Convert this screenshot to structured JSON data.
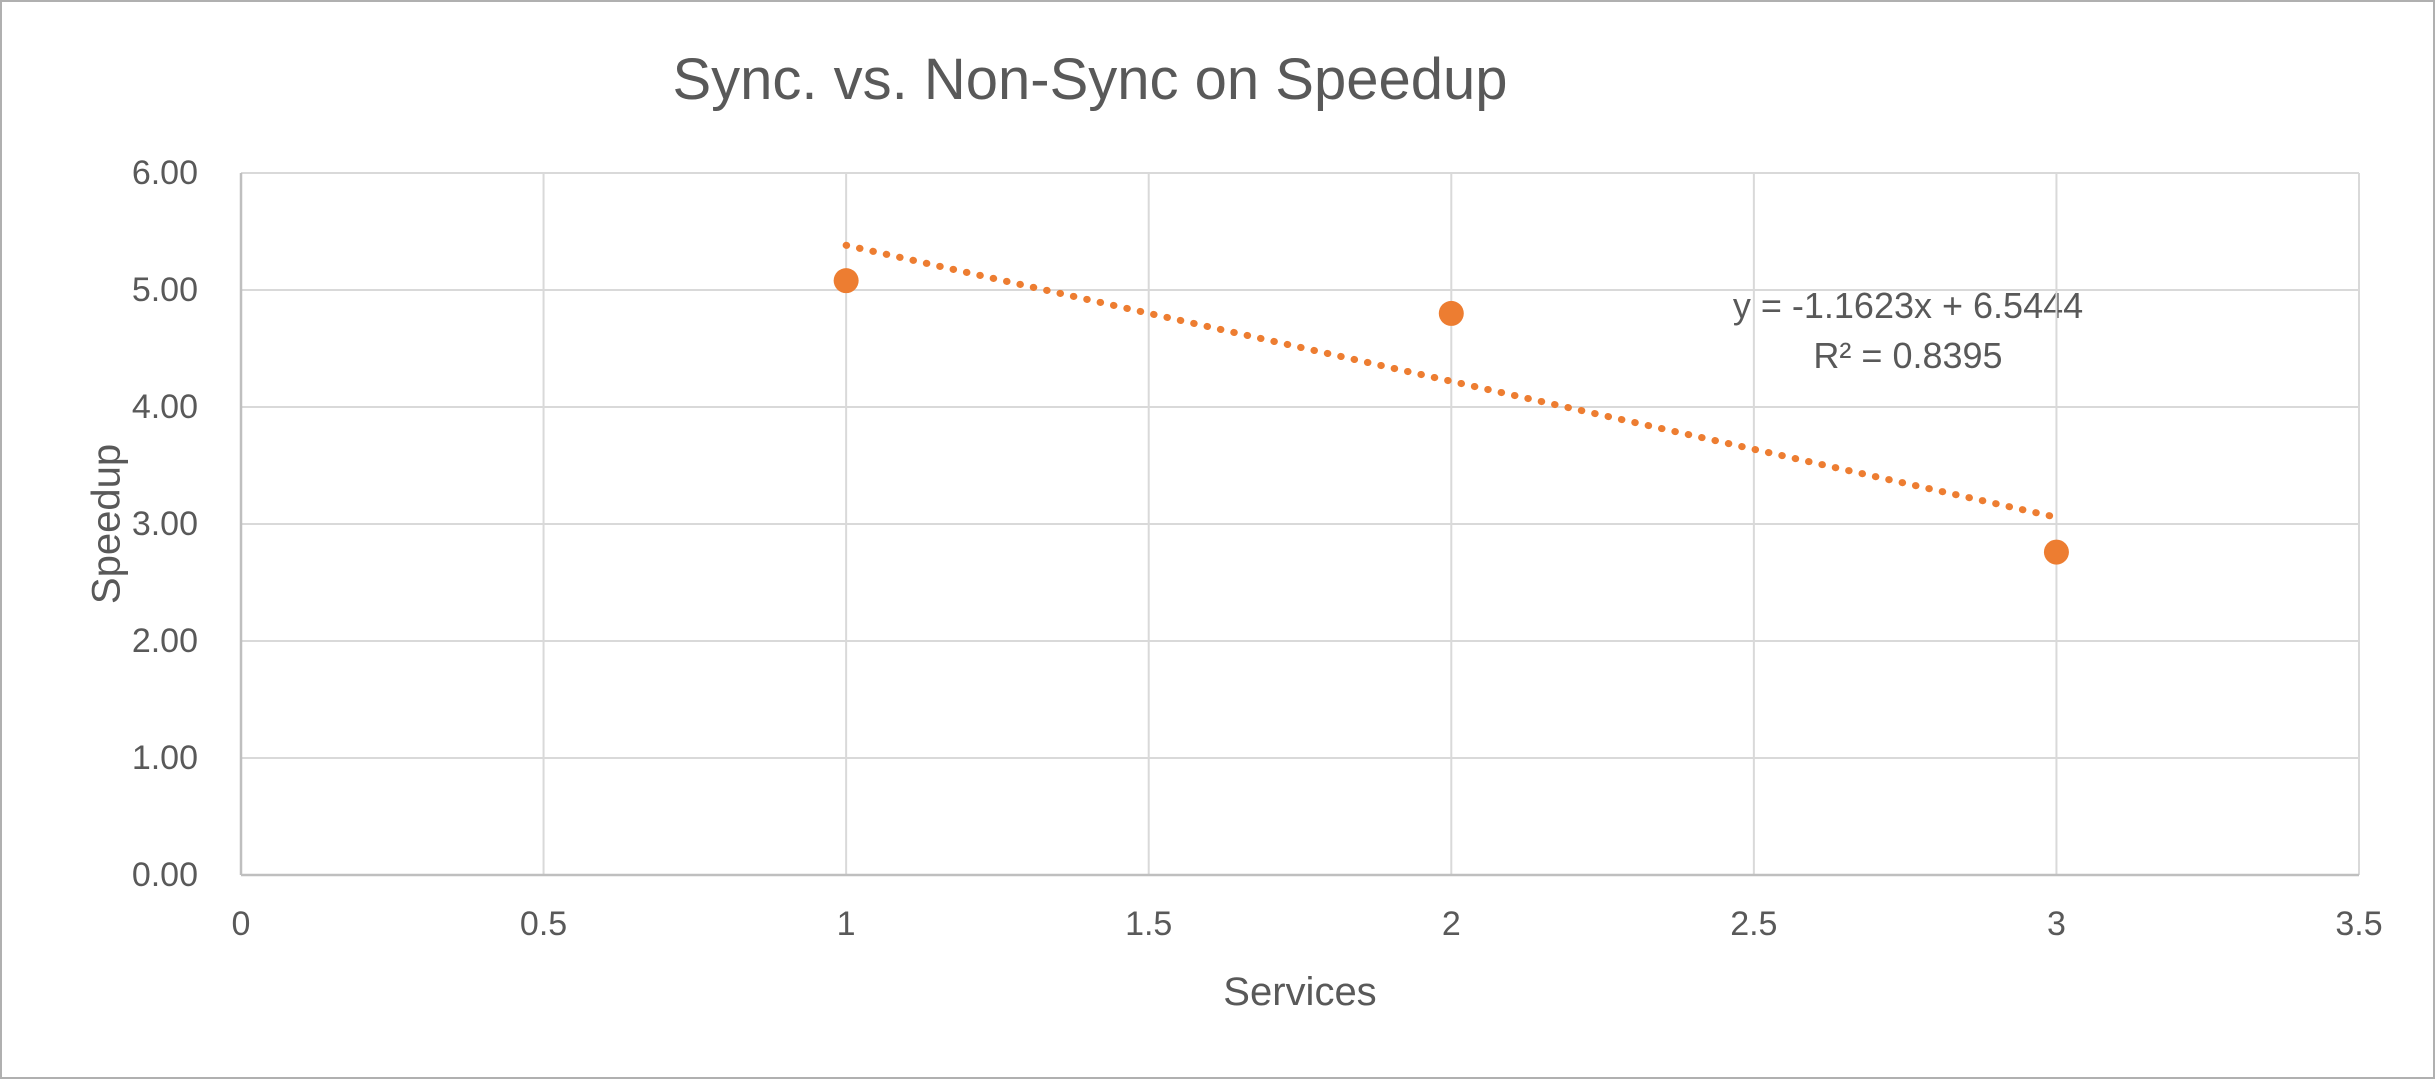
{
  "window": {
    "background": "#FFFFFF",
    "frame_border_color": "#B0B0B0"
  },
  "chart_data": {
    "type": "scatter",
    "title": "Sync. vs. Non-Sync on Speedup",
    "xlabel": "Services",
    "ylabel": "Speedup",
    "points": [
      {
        "x": 1,
        "y": 5.08
      },
      {
        "x": 2,
        "y": 4.8
      },
      {
        "x": 3,
        "y": 2.76
      }
    ],
    "xlim": [
      0,
      3.5
    ],
    "ylim": [
      0,
      6
    ],
    "xticks": [
      {
        "value": 0,
        "label": "0"
      },
      {
        "value": 0.5,
        "label": "0.5"
      },
      {
        "value": 1,
        "label": "1"
      },
      {
        "value": 1.5,
        "label": "1.5"
      },
      {
        "value": 2,
        "label": "2"
      },
      {
        "value": 2.5,
        "label": "2.5"
      },
      {
        "value": 3,
        "label": "3"
      },
      {
        "value": 3.5,
        "label": "3.5"
      }
    ],
    "yticks": [
      {
        "value": 0,
        "label": "0.00"
      },
      {
        "value": 1,
        "label": "1.00"
      },
      {
        "value": 2,
        "label": "2.00"
      },
      {
        "value": 3,
        "label": "3.00"
      },
      {
        "value": 4,
        "label": "4.00"
      },
      {
        "value": 5,
        "label": "5.00"
      },
      {
        "value": 6,
        "label": "6.00"
      }
    ],
    "grid": true,
    "legend": false,
    "trendline": {
      "slope": -1.1623,
      "intercept": 6.5444,
      "x_start": 1,
      "x_end": 3,
      "style": "dotted",
      "equation_label": "y = -1.1623x + 6.5444",
      "r2_label": "R² = 0.8395"
    },
    "colors": {
      "marker": "#ED7D31",
      "trendline": "#ED7D31",
      "gridline": "#D9D9D9",
      "axis_line": "#BFBFBF",
      "text": "#595959"
    }
  }
}
